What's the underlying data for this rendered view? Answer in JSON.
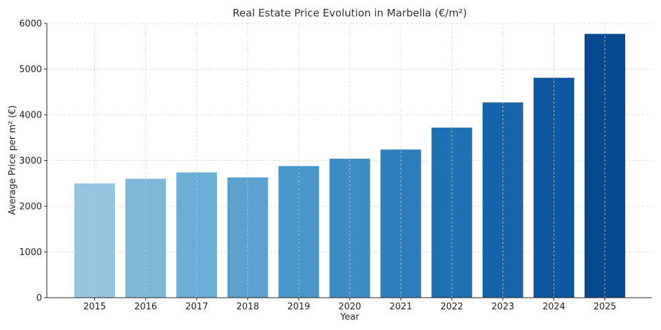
{
  "chart_data": {
    "type": "bar",
    "title": "Real Estate Price Evolution in Marbella (€/m²)",
    "xlabel": "Year",
    "ylabel": "Average Price per m² (€)",
    "categories": [
      "2015",
      "2016",
      "2017",
      "2018",
      "2019",
      "2020",
      "2021",
      "2022",
      "2023",
      "2024",
      "2025"
    ],
    "values": [
      2500,
      2600,
      2740,
      2630,
      2880,
      3040,
      3240,
      3720,
      4270,
      4810,
      5770
    ],
    "ylim": [
      0,
      6000
    ],
    "yticks": [
      0,
      1000,
      2000,
      3000,
      4000,
      5000,
      6000
    ],
    "grid": true,
    "bar_colors": [
      "#94c4df",
      "#7fb7d9",
      "#6aaed6",
      "#5aa1d0",
      "#4a97c9",
      "#3d8dc4",
      "#2f7ebc",
      "#2070b4",
      "#1864aa",
      "#0e58a2",
      "#084a91"
    ]
  }
}
